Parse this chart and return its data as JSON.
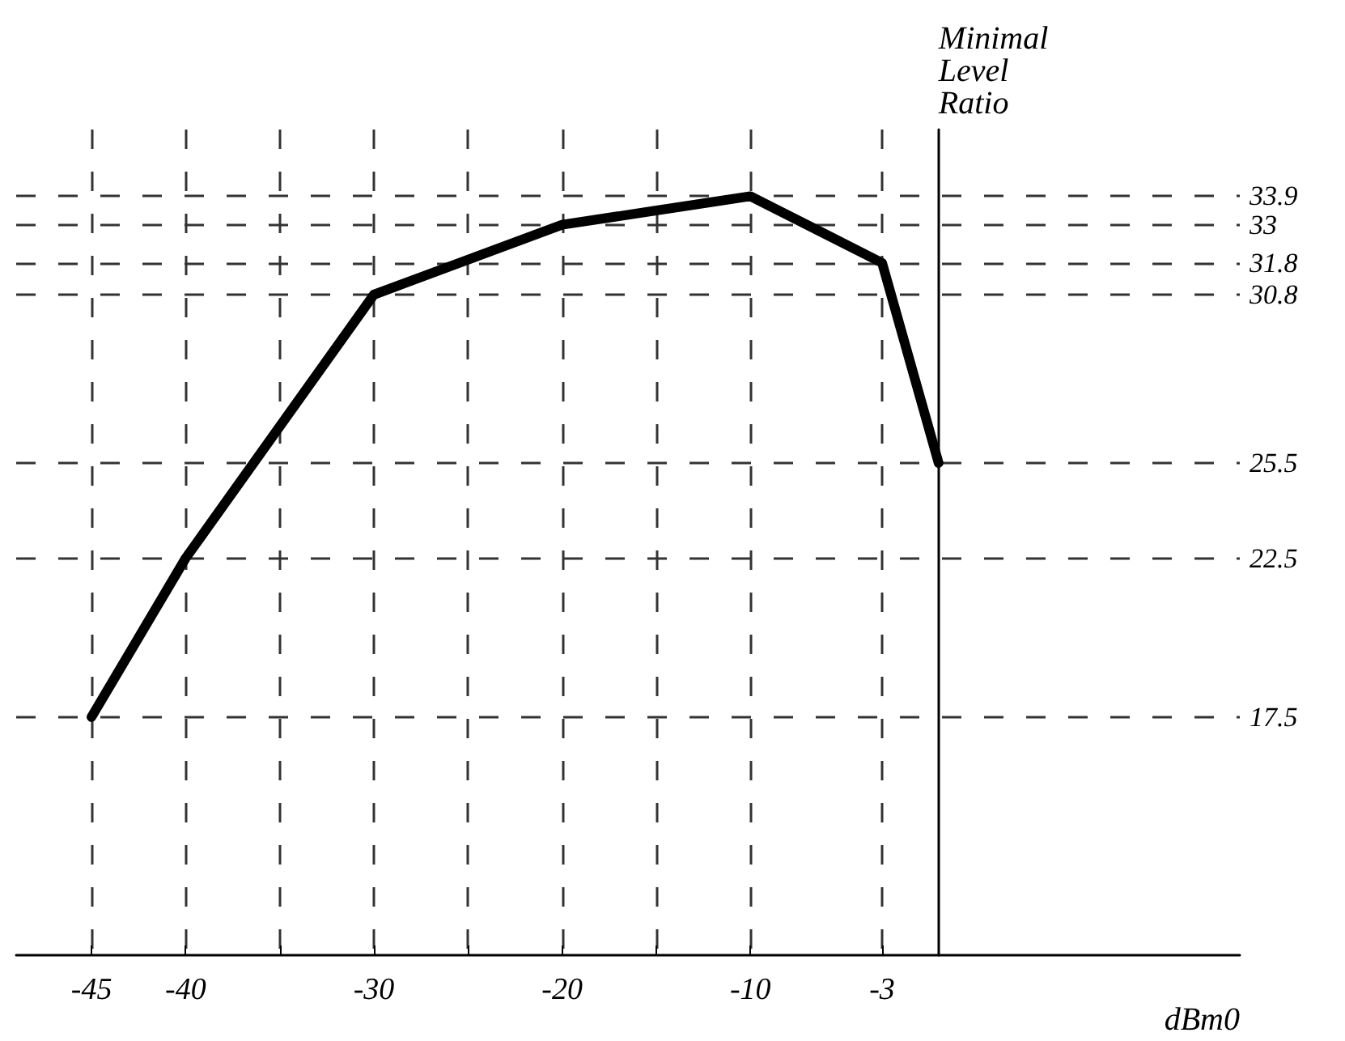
{
  "chart_data": {
    "type": "line",
    "xlabel": "dBm0",
    "ylabel": "Minimal Level Ratio",
    "x": [
      -45,
      -40,
      -30,
      -20,
      -10,
      -3,
      0
    ],
    "series": [
      {
        "color": "#000000",
        "values": [
          17.5,
          22.5,
          30.8,
          33.0,
          33.9,
          31.8,
          25.5
        ]
      }
    ],
    "xlim": [
      -49,
      16
    ],
    "xticks": [
      -45,
      -40,
      {
        "value": -35,
        "label": null
      },
      -30,
      {
        "value": -25,
        "label": null
      },
      -20,
      {
        "value": -15,
        "label": null
      },
      -10,
      -3
    ],
    "ylim": [
      10,
      36
    ],
    "yticks": [
      17.5,
      22.5,
      25.5,
      30.8,
      31.8,
      33.0,
      33.9
    ],
    "grid": true,
    "marker": "none",
    "line_style": "solid"
  }
}
